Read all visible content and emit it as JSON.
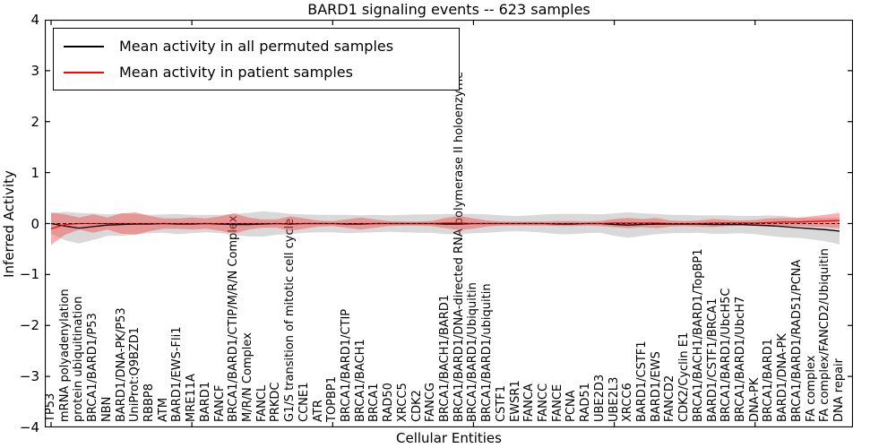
{
  "chart_data": {
    "type": "line",
    "title": "BARD1 signaling events -- 623 samples",
    "xlabel": "Cellular Entities",
    "ylabel": "Inferred Activity",
    "ylim": [
      -4,
      4
    ],
    "yticks": [
      -4,
      -3,
      -2,
      -1,
      0,
      1,
      2,
      3,
      4
    ],
    "xtick_indices": [
      0,
      10,
      20,
      30,
      40,
      50
    ],
    "grid": false,
    "legend_position": "upper left",
    "categories": [
      "TP53",
      "mRNA polyadenylation",
      "protein ubiquitination",
      "BRCA1/BARD1/P53",
      "NBN",
      "BARD1/DNA-PK/P53",
      "UniProt:Q9BZD1",
      "RBBP8",
      "ATM",
      "BARD1/EWS-Fli1",
      "MRE11A",
      "BARD1",
      "FANCF",
      "BRCA1/BARD1/CTIP/M/R/N Complex",
      "M/R/N Complex",
      "FANCL",
      "PRKDC",
      "G1/S transition of mitotic cell cycle",
      "CCNE1",
      "ATR",
      "TOPBP1",
      "BRCA1/BARD1/CTIP",
      "BRCA1/BACH1",
      "BRCA1",
      "RAD50",
      "XRCC5",
      "CDK2",
      "FANCG",
      "BRCA1/BACH1/BARD1",
      "BRCA1/BARD1/DNA-directed RNA polymerase II holoenzyme",
      "BRCA1/BARD1/Ubiquitin",
      "BRCA1/BARD1/ubiquitin",
      "CSTF1",
      "EWSR1",
      "FANCA",
      "FANCC",
      "FANCE",
      "PCNA",
      "RAD51",
      "UBE2D3",
      "UBE2L3",
      "XRCC6",
      "BARD1/CSTF1",
      "BARD1/EWS",
      "FANCD2",
      "CDK2/Cyclin E1",
      "BRCA1/BACH1/BARD1/TopBP1",
      "BARD1/CSTF1/BRCA1",
      "BRCA1/BARD1/UbcH5C",
      "BRCA1/BARD1/UbcH7",
      "DNA-PK",
      "BRCA1/BARD1",
      "BARD1/DNA-PK",
      "BRCA1/BARD1/RAD51/PCNA",
      "FA complex",
      "FA complex/FANCD2/Ubiquitin",
      "DNA repair"
    ],
    "series": [
      {
        "name": "Mean activity in all permuted samples",
        "color": "#000000",
        "values": [
          0.0,
          -0.05,
          -0.09,
          -0.06,
          -0.03,
          -0.02,
          -0.01,
          -0.01,
          0.0,
          -0.01,
          -0.01,
          0.0,
          -0.01,
          -0.02,
          -0.02,
          -0.01,
          0.0,
          -0.01,
          0.0,
          0.0,
          0.0,
          -0.01,
          -0.01,
          0.0,
          0.0,
          0.0,
          0.0,
          0.0,
          -0.01,
          -0.01,
          0.0,
          0.0,
          0.0,
          0.0,
          0.0,
          0.0,
          -0.01,
          -0.01,
          0.0,
          0.0,
          -0.02,
          -0.03,
          -0.02,
          -0.01,
          -0.01,
          -0.01,
          -0.01,
          -0.02,
          -0.02,
          -0.02,
          -0.03,
          -0.04,
          -0.06,
          -0.08,
          -0.1,
          -0.12,
          -0.15
        ]
      },
      {
        "name": "Mean activity in patient samples",
        "color": "#ff0000",
        "values": [
          -0.1,
          -0.02,
          0.0,
          0.0,
          0.0,
          0.0,
          0.0,
          0.0,
          0.0,
          0.0,
          0.0,
          0.0,
          0.0,
          0.0,
          0.0,
          0.0,
          0.0,
          0.0,
          0.0,
          0.0,
          0.0,
          0.0,
          0.0,
          0.0,
          0.0,
          0.0,
          0.0,
          0.0,
          0.01,
          0.01,
          0.0,
          0.0,
          0.0,
          0.0,
          0.0,
          0.0,
          0.0,
          0.0,
          0.0,
          0.0,
          0.01,
          0.01,
          0.01,
          0.01,
          0.0,
          0.0,
          0.0,
          0.01,
          0.01,
          0.01,
          0.01,
          0.02,
          0.03,
          0.03,
          0.04,
          0.05,
          0.06
        ]
      }
    ],
    "bands": [
      {
        "name": "permuted samples std band",
        "series": 0,
        "color": "#777777",
        "opacity": 0.28,
        "half_widths": [
          0.2,
          0.28,
          0.3,
          0.26,
          0.21,
          0.22,
          0.2,
          0.18,
          0.18,
          0.2,
          0.18,
          0.17,
          0.18,
          0.21,
          0.23,
          0.25,
          0.22,
          0.2,
          0.18,
          0.17,
          0.17,
          0.18,
          0.17,
          0.17,
          0.16,
          0.17,
          0.18,
          0.18,
          0.2,
          0.2,
          0.19,
          0.18,
          0.16,
          0.15,
          0.16,
          0.18,
          0.2,
          0.2,
          0.19,
          0.18,
          0.22,
          0.25,
          0.22,
          0.2,
          0.18,
          0.18,
          0.17,
          0.18,
          0.18,
          0.17,
          0.18,
          0.2,
          0.21,
          0.2,
          0.21,
          0.23,
          0.26
        ]
      },
      {
        "name": "patient samples std band",
        "series": 1,
        "color": "#ff2a2a",
        "opacity": 0.38,
        "half_widths": [
          0.32,
          0.2,
          0.12,
          0.18,
          0.12,
          0.2,
          0.22,
          0.15,
          0.1,
          0.1,
          0.12,
          0.1,
          0.14,
          0.2,
          0.12,
          0.08,
          0.08,
          0.14,
          0.1,
          0.06,
          0.05,
          0.08,
          0.12,
          0.08,
          0.05,
          0.04,
          0.04,
          0.05,
          0.1,
          0.14,
          0.1,
          0.06,
          0.04,
          0.04,
          0.04,
          0.04,
          0.05,
          0.05,
          0.04,
          0.05,
          0.08,
          0.1,
          0.08,
          0.1,
          0.06,
          0.05,
          0.06,
          0.08,
          0.06,
          0.05,
          0.06,
          0.08,
          0.08,
          0.08,
          0.1,
          0.12,
          0.15
        ]
      }
    ],
    "zero_line": {
      "color": "#000000",
      "dash": [
        4,
        2.5
      ]
    }
  }
}
